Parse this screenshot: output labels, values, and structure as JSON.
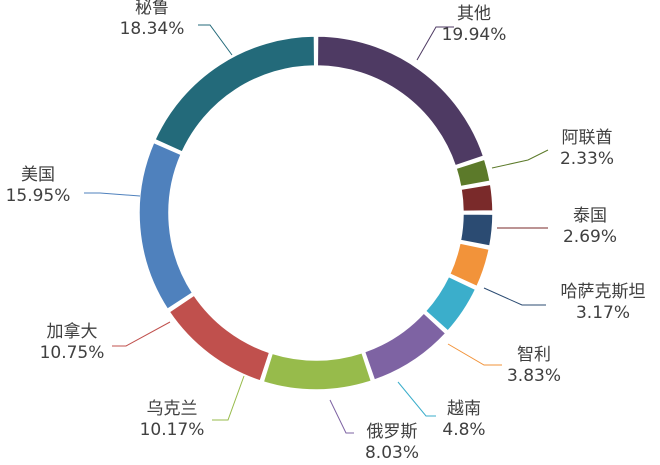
{
  "chart_data": {
    "type": "pie",
    "style": "donut",
    "title": "",
    "start": "12 o'clock",
    "direction": "clockwise",
    "slices": [
      {
        "label": "其他",
        "value": 19.94,
        "display": "19.94%",
        "color": "#4E3A63"
      },
      {
        "label": "阿联酋",
        "value": 2.33,
        "display": "2.33%",
        "color": "#5C7A2A"
      },
      {
        "label": "泰国",
        "value": 2.69,
        "display": "2.69%",
        "color": "#7A2A2A"
      },
      {
        "label": "哈萨克斯坦",
        "value": 3.17,
        "display": "3.17%",
        "color": "#2B4B72"
      },
      {
        "label": "智利",
        "value": 3.83,
        "display": "3.83%",
        "color": "#F2933A"
      },
      {
        "label": "越南",
        "value": 4.8,
        "display": "4.8%",
        "color": "#3BAECB"
      },
      {
        "label": "俄罗斯",
        "value": 8.03,
        "display": "8.03%",
        "color": "#7E63A3"
      },
      {
        "label": "乌克兰",
        "value": 10.17,
        "display": "10.17%",
        "color": "#97BB4B"
      },
      {
        "label": "加拿大",
        "value": 10.75,
        "display": "10.75%",
        "color": "#C0504D"
      },
      {
        "label": "美国",
        "value": 15.95,
        "display": "15.95%",
        "color": "#4F81BD"
      },
      {
        "label": "秘鲁",
        "value": 18.34,
        "display": "18.34%",
        "color": "#236A7A"
      }
    ]
  }
}
